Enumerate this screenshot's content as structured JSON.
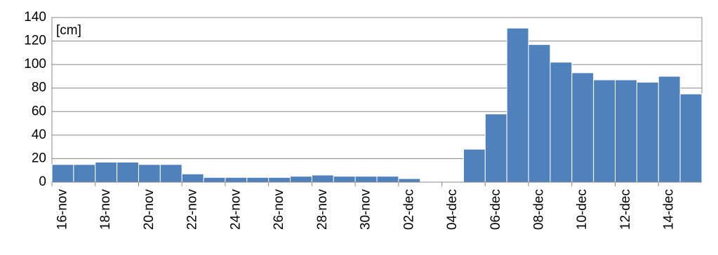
{
  "chart_data": {
    "type": "bar",
    "annotation": "[cm]",
    "categories": [
      "16-nov",
      null,
      "18-nov",
      null,
      "20-nov",
      null,
      "22-nov",
      null,
      "24-nov",
      null,
      "26-nov",
      null,
      "28-nov",
      null,
      "30-nov",
      null,
      "02-dec",
      null,
      "04-dec",
      null,
      "06-dec",
      null,
      "08-dec",
      null,
      "10-dec",
      null,
      "12-dec",
      null,
      "14-dec",
      null
    ],
    "values": [
      15,
      15,
      17,
      17,
      15,
      15,
      7,
      4,
      4,
      4,
      4,
      5,
      6,
      5,
      5,
      5,
      3,
      0,
      0,
      28,
      58,
      131,
      117,
      102,
      93,
      87,
      87,
      85,
      90,
      75
    ],
    "color": "#4f81bd",
    "ylim": [
      0,
      140
    ],
    "yticks": [
      0,
      20,
      40,
      60,
      80,
      100,
      120,
      140
    ],
    "grid": true
  }
}
